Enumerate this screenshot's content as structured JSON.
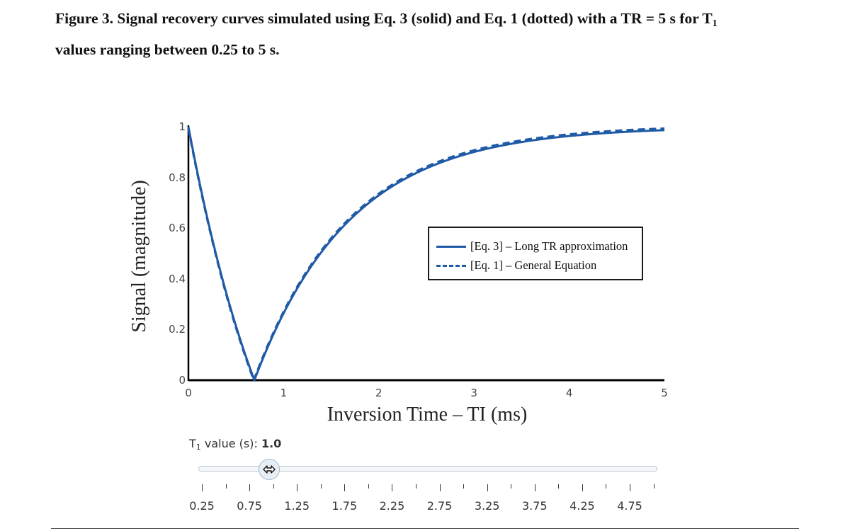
{
  "caption": {
    "line1": "Figure 3. Signal recovery curves simulated using Eq. 3 (solid) and Eq. 1 (dotted) with a TR = 5 s for T",
    "line1_sub": "1",
    "line2": "values ranging between 0.25 to 5 s."
  },
  "colors": {
    "series": "#1f5aa6",
    "axis": "#000000"
  },
  "slider": {
    "label_prefix": "T",
    "label_sub": "1",
    "label_suffix": " value (s): ",
    "value": "1.0",
    "ticks": [
      "0.25",
      "0.75",
      "1.25",
      "1.75",
      "2.25",
      "2.75",
      "3.25",
      "3.75",
      "4.25",
      "4.75"
    ],
    "min": 0.25,
    "max": 5,
    "step": 0.25,
    "current": 1.0
  },
  "chart_data": {
    "type": "line",
    "xlabel": "Inversion Time – TI (ms)",
    "ylabel": "Signal (magnitude)",
    "xlim": [
      0,
      5
    ],
    "ylim": [
      0,
      1
    ],
    "xticks": [
      "0",
      "1",
      "2",
      "3",
      "4",
      "5"
    ],
    "yticks": [
      "0",
      "0.2",
      "0.4",
      "0.6",
      "0.8",
      "1"
    ],
    "grid": false,
    "legend_position": "center-right",
    "params": {
      "T1": 1.0,
      "TR": 5
    },
    "series": [
      {
        "name": "[Eq. 3] – Long TR approximation",
        "style": "solid"
      },
      {
        "name": "[Eq. 1] – General Equation",
        "style": "dashed"
      }
    ],
    "x": [
      0,
      0.25,
      0.5,
      0.69,
      0.75,
      1,
      1.25,
      1.5,
      1.75,
      2,
      2.5,
      3,
      3.5,
      4,
      4.5,
      5
    ],
    "series_values": [
      [
        1,
        0.558,
        0.213,
        0.0,
        0.055,
        0.264,
        0.427,
        0.554,
        0.652,
        0.729,
        0.836,
        0.9,
        0.94,
        0.963,
        0.978,
        0.987
      ],
      [
        0.993,
        0.551,
        0.206,
        0.0,
        0.062,
        0.271,
        0.434,
        0.561,
        0.659,
        0.736,
        0.843,
        0.907,
        0.947,
        0.97,
        0.985,
        0.993
      ]
    ]
  }
}
